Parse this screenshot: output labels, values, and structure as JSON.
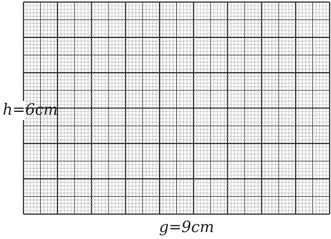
{
  "labels": {
    "height": "h=6cm",
    "base": "g=9cm"
  }
}
